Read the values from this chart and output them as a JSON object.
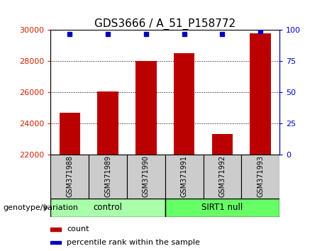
{
  "title": "GDS3666 / A_51_P158772",
  "samples": [
    "GSM371988",
    "GSM371989",
    "GSM371990",
    "GSM371991",
    "GSM371992",
    "GSM371993"
  ],
  "counts": [
    24700,
    26050,
    28000,
    28500,
    23300,
    29800
  ],
  "percentile_ranks": [
    97,
    97,
    97,
    97,
    97,
    99
  ],
  "ylim_left": [
    22000,
    30000
  ],
  "ylim_right": [
    0,
    100
  ],
  "yticks_left": [
    22000,
    24000,
    26000,
    28000,
    30000
  ],
  "yticks_right": [
    0,
    25,
    50,
    75,
    100
  ],
  "bar_color": "#bb0000",
  "dot_color": "#0000bb",
  "group1_label": "control",
  "group1_color": "#aaffaa",
  "group2_label": "SIRT1 null",
  "group2_color": "#66ff66",
  "xlabel_arrow": "genotype/variation",
  "legend_count_label": "count",
  "legend_pct_label": "percentile rank within the sample",
  "tick_label_color_left": "#cc2200",
  "tick_label_color_right": "#0000cc",
  "bar_bottom": 22000,
  "bar_width": 0.55,
  "cell_color": "#cccccc"
}
